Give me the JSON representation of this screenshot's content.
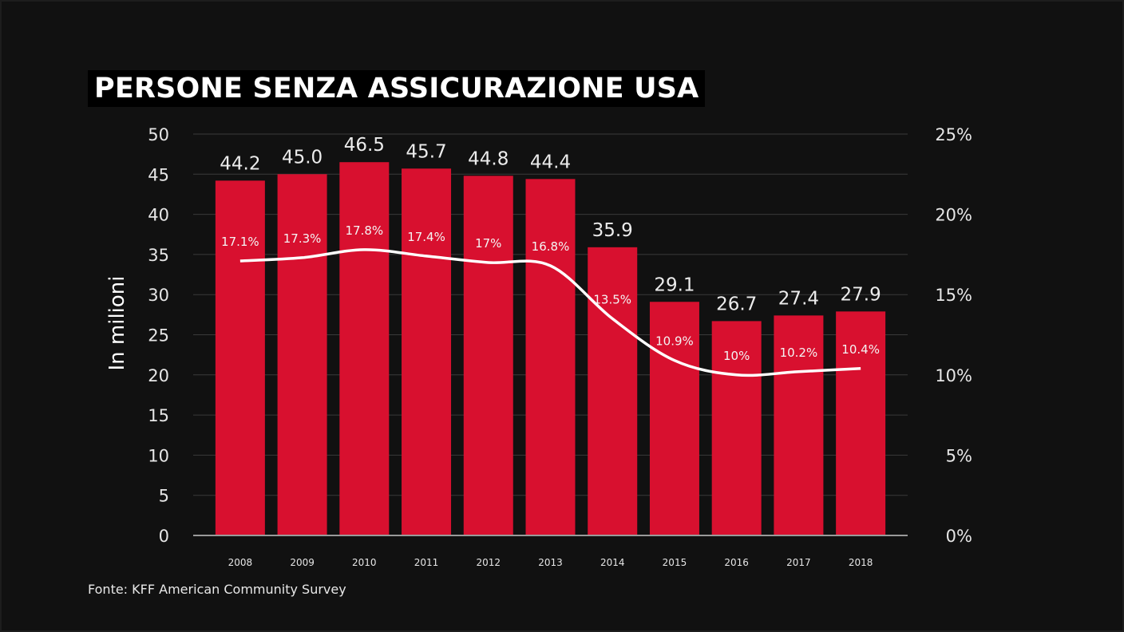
{
  "title": "PERSONE SENZA ASSICURAZIONE USA",
  "source": "Fonte: KFF American Community Survey",
  "chart_data": {
    "type": "bar",
    "categories": [
      "2008",
      "2009",
      "2010",
      "2011",
      "2012",
      "2013",
      "2014",
      "2015",
      "2016",
      "2017",
      "2018"
    ],
    "series": [
      {
        "type": "bar",
        "axis": "left",
        "values": [
          44.2,
          45.0,
          46.5,
          45.7,
          44.8,
          44.4,
          35.9,
          29.1,
          26.7,
          27.4,
          27.9
        ],
        "labels": [
          "44.2",
          "45.0",
          "46.5",
          "45.7",
          "44.8",
          "44.4",
          "35.9",
          "29.1",
          "26.7",
          "27.4",
          "27.9"
        ],
        "color": "#d8102f"
      },
      {
        "type": "line",
        "axis": "right",
        "values": [
          17.1,
          17.3,
          17.8,
          17.4,
          17.0,
          16.8,
          13.5,
          10.9,
          10.0,
          10.2,
          10.4
        ],
        "labels": [
          "17.1%",
          "17.3%",
          "17.8%",
          "17.4%",
          "17%",
          "16.8%",
          "13.5%",
          "10.9%",
          "10%",
          "10.2%",
          "10.4%"
        ],
        "color": "#ffffff"
      }
    ],
    "ylabel": "In milioni",
    "ylim": [
      0,
      50
    ],
    "yticks": [
      "0",
      "5",
      "10",
      "15",
      "20",
      "25",
      "30",
      "35",
      "40",
      "45",
      "50"
    ],
    "y2lim": [
      0,
      25
    ],
    "y2ticks": [
      "0%",
      "5%",
      "10%",
      "15%",
      "20%",
      "25%"
    ],
    "grid": true
  }
}
